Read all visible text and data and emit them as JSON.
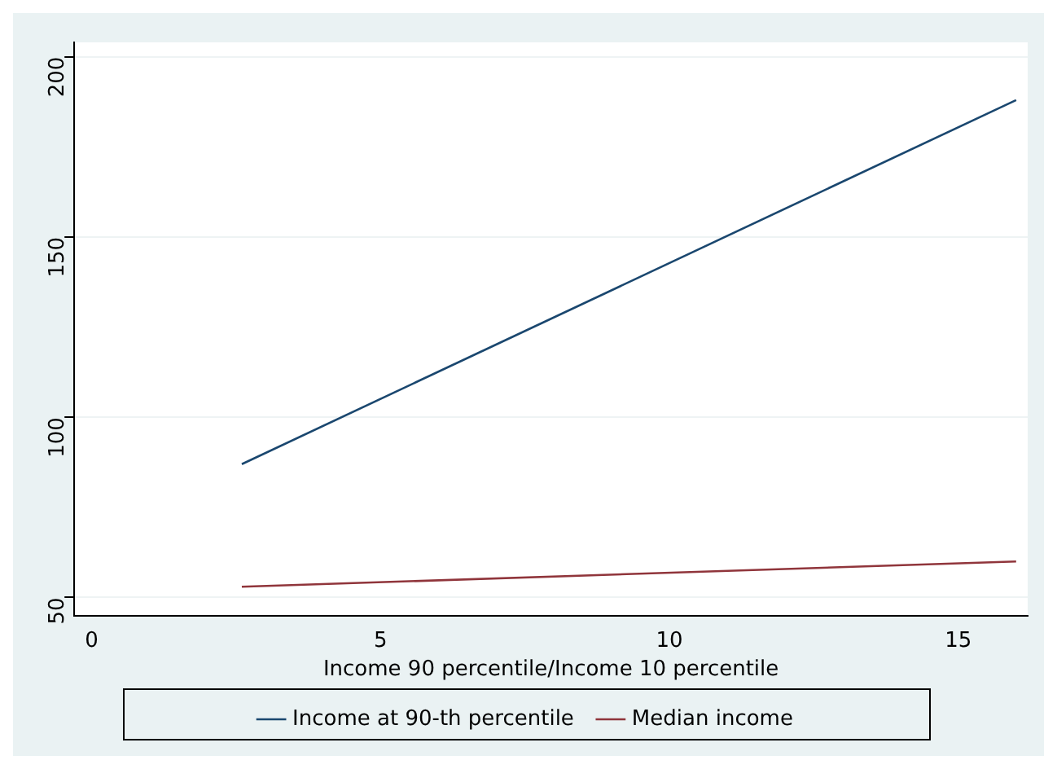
{
  "chart_data": {
    "type": "line",
    "xlabel": "Income 90 percentile/Income 10 percentile",
    "x": [
      2.6,
      16
    ],
    "series": [
      {
        "name": "Income at 90-th percentile",
        "color": "#1a476f",
        "values": [
          87,
          188
        ]
      },
      {
        "name": "Median income",
        "color": "#90353b",
        "values": [
          53,
          60
        ]
      }
    ],
    "xlim": [
      -0.3,
      16.2
    ],
    "xticks": [
      0,
      5,
      10,
      15
    ],
    "ylim": [
      45,
      204
    ],
    "yticks": [
      50,
      100,
      150,
      200
    ],
    "grid": "y",
    "legend": "bottom",
    "marker": "none",
    "line_style": "solid"
  }
}
